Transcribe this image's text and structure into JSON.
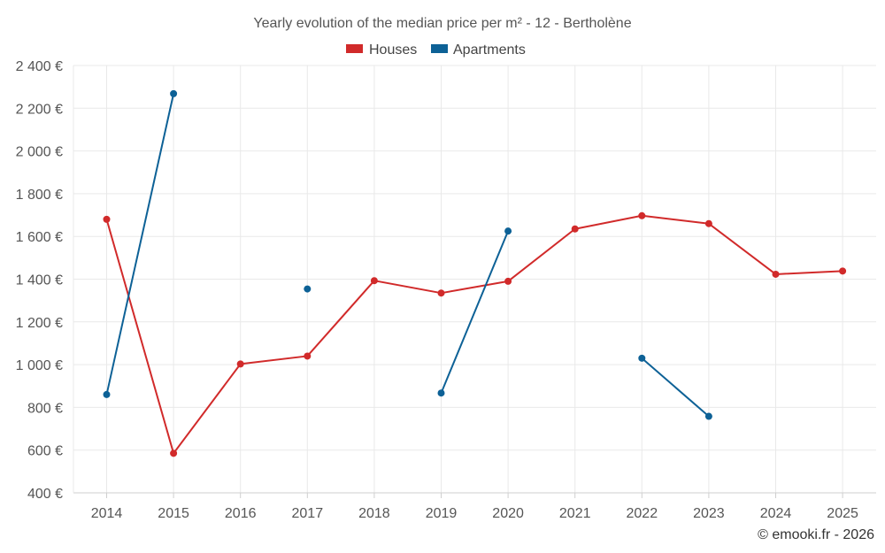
{
  "chart_data": {
    "type": "line",
    "title": "Yearly evolution of the median price per m² - 12 - Bertholène",
    "xlabel": "",
    "ylabel": "",
    "categories": [
      "2014",
      "2015",
      "2016",
      "2017",
      "2018",
      "2019",
      "2020",
      "2021",
      "2022",
      "2023",
      "2024",
      "2025"
    ],
    "ylim": [
      400,
      2400
    ],
    "yticks": [
      400,
      600,
      800,
      1000,
      1200,
      1400,
      1600,
      1800,
      2000,
      2200,
      2400
    ],
    "ytick_labels": [
      "400 €",
      "600 €",
      "800 €",
      "1 000 €",
      "1 200 €",
      "1 400 €",
      "1 600 €",
      "1 800 €",
      "2 000 €",
      "2 200 €",
      "2 400 €"
    ],
    "grid": true,
    "legend_position": "top-center",
    "series": [
      {
        "name": "Houses",
        "color": "#d12a2a",
        "values": [
          1680,
          585,
          1003,
          1040,
          1393,
          1335,
          1390,
          1635,
          1697,
          1660,
          1423,
          1438
        ]
      },
      {
        "name": "Apartments",
        "color": "#0d6196",
        "values": [
          860,
          2268,
          null,
          1354,
          null,
          867,
          1625,
          null,
          1030,
          758,
          null,
          null
        ]
      }
    ]
  },
  "credit": "© emooki.fr - 2026"
}
